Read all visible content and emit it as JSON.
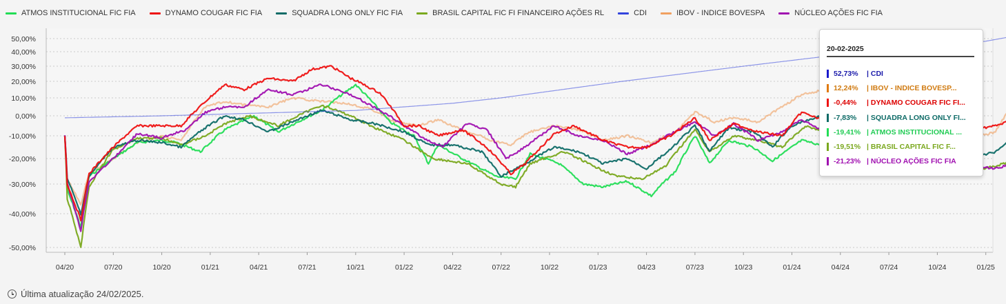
{
  "legend": [
    {
      "name": "ATMOS INSTITUCIONAL FIC FIA",
      "color": "#22dd55"
    },
    {
      "name": "DYNAMO COUGAR FIC FIA",
      "color": "#ee1111"
    },
    {
      "name": "SQUADRA LONG ONLY FIC FIA",
      "color": "#0e6b67"
    },
    {
      "name": "BRASIL CAPITAL FIC FI FINANCEIRO AÇÕES RL",
      "color": "#7aa81e"
    },
    {
      "name": "CDI",
      "color": "#3344dd"
    },
    {
      "name": "IBOV - INDICE BOVESPA",
      "color": "#f0a060"
    },
    {
      "name": "NÚCLEO AÇÕES FIC FIA",
      "color": "#a010b0"
    }
  ],
  "tooltip": {
    "date": "20-02-2025",
    "rows": [
      {
        "value": "52,73%",
        "label": "| CDI",
        "color": "#1a1aaa",
        "bar": "#1a1acc"
      },
      {
        "value": "12,24%",
        "label": "| IBOV - INDICE BOVESP...",
        "color": "#d07a10",
        "bar": "#e07a10"
      },
      {
        "value": "-0,44%",
        "label": "| DYNAMO COUGAR FIC FI...",
        "color": "#dd0000",
        "bar": "#ee1111"
      },
      {
        "value": "-7,83%",
        "label": "| SQUADRA LONG ONLY FI...",
        "color": "#0e6b67",
        "bar": "#0e6b67"
      },
      {
        "value": "-19,41%",
        "label": "| ATMOS INSTITUCIONAL ...",
        "color": "#22cc55",
        "bar": "#22dd55"
      },
      {
        "value": "-19,51%",
        "label": "| BRASIL CAPITAL FIC F...",
        "color": "#7aa81e",
        "bar": "#7aa81e"
      },
      {
        "value": "-21,23%",
        "label": "| NÚCLEO AÇÕES FIC FIA",
        "color": "#a010b0",
        "bar": "#a010b0"
      }
    ]
  },
  "footer": {
    "text": "Última atualização 24/02/2025."
  },
  "chart_data": {
    "type": "line",
    "x_ticks": [
      "04/20",
      "07/20",
      "10/20",
      "01/21",
      "04/21",
      "07/21",
      "10/21",
      "01/22",
      "04/22",
      "07/22",
      "10/22",
      "01/23",
      "04/23",
      "07/23",
      "10/23",
      "01/24",
      "04/24",
      "07/24",
      "10/24",
      "01/25"
    ],
    "y_ticks": [
      50,
      40,
      30,
      20,
      10,
      0,
      -10,
      -20,
      -30,
      -40,
      -50
    ],
    "y_tick_labels": [
      "50,00%",
      "40,00%",
      "30,00%",
      "20,00%",
      "10,00%",
      "0,00%",
      "-10,00%",
      "-20,00%",
      "-30,00%",
      "-40,00%",
      "-50,00%"
    ],
    "y_scale": "symlog",
    "grid": "horizontal-dotted",
    "legend_position": "top",
    "series": [
      {
        "name": "ATMOS INSTITUCIONAL FIC FIA",
        "color": "#22dd55",
        "points": [
          [
            0,
            -10
          ],
          [
            0.05,
            -32
          ],
          [
            0.33,
            -44
          ],
          [
            0.5,
            -27
          ],
          [
            1.0,
            -20
          ],
          [
            1.5,
            -13
          ],
          [
            2.0,
            -12
          ],
          [
            2.3,
            -13
          ],
          [
            2.8,
            -17
          ],
          [
            3.3,
            -7
          ],
          [
            3.9,
            0
          ],
          [
            4.4,
            -8
          ],
          [
            5.3,
            3
          ],
          [
            6.0,
            18
          ],
          [
            6.7,
            -3
          ],
          [
            7.2,
            -10
          ],
          [
            7.5,
            -22
          ],
          [
            7.7,
            -14
          ],
          [
            8.2,
            -20
          ],
          [
            8.9,
            -27
          ],
          [
            9.3,
            -28
          ],
          [
            9.6,
            -18
          ],
          [
            10.2,
            -22
          ],
          [
            10.7,
            -30
          ],
          [
            11.1,
            -31
          ],
          [
            11.6,
            -29
          ],
          [
            12.1,
            -34
          ],
          [
            12.6,
            -25
          ],
          [
            13.0,
            -10
          ],
          [
            13.3,
            -22
          ],
          [
            13.7,
            -12
          ],
          [
            14.2,
            -15
          ],
          [
            14.6,
            -21
          ],
          [
            15.2,
            -12
          ],
          [
            15.6,
            -14
          ],
          [
            16.0,
            -12
          ]
        ]
      },
      {
        "name": "DYNAMO COUGAR FIC FIA",
        "color": "#ee1111",
        "points": [
          [
            0,
            -10
          ],
          [
            0.05,
            -30
          ],
          [
            0.33,
            -42
          ],
          [
            0.5,
            -26
          ],
          [
            1.0,
            -15
          ],
          [
            1.5,
            -5
          ],
          [
            2.0,
            -5
          ],
          [
            2.4,
            -5
          ],
          [
            2.9,
            8
          ],
          [
            3.3,
            18
          ],
          [
            3.7,
            15
          ],
          [
            4.2,
            22
          ],
          [
            4.7,
            20
          ],
          [
            5.1,
            28
          ],
          [
            5.5,
            30
          ],
          [
            5.9,
            22
          ],
          [
            6.5,
            13
          ],
          [
            7.0,
            -5
          ],
          [
            7.3,
            -5
          ],
          [
            7.7,
            -10
          ],
          [
            8.2,
            -7
          ],
          [
            8.7,
            -15
          ],
          [
            9.2,
            -26
          ],
          [
            9.5,
            -22
          ],
          [
            10.1,
            -9
          ],
          [
            10.5,
            -5
          ],
          [
            11.1,
            -12
          ],
          [
            11.6,
            -15
          ],
          [
            12.0,
            -15
          ],
          [
            12.5,
            -10
          ],
          [
            13.0,
            -1
          ],
          [
            13.3,
            -12
          ],
          [
            13.8,
            -4
          ],
          [
            14.3,
            -8
          ],
          [
            14.8,
            -10
          ],
          [
            15.2,
            2
          ],
          [
            15.6,
            -2
          ],
          [
            16.0,
            0
          ],
          [
            16.4,
            8
          ],
          [
            16.8,
            7
          ],
          [
            18.7,
            -7
          ],
          [
            19.2,
            -5
          ],
          [
            19.7,
            -1
          ]
        ]
      },
      {
        "name": "SQUADRA LONG ONLY FIC FIA",
        "color": "#0e6b67",
        "points": [
          [
            0,
            -10
          ],
          [
            0.05,
            -28
          ],
          [
            0.33,
            -40
          ],
          [
            0.5,
            -27
          ],
          [
            1.0,
            -15
          ],
          [
            1.5,
            -12
          ],
          [
            2.0,
            -13
          ],
          [
            2.4,
            -15
          ],
          [
            2.9,
            -6
          ],
          [
            3.3,
            0
          ],
          [
            3.7,
            -2
          ],
          [
            4.2,
            -8
          ],
          [
            4.7,
            -3
          ],
          [
            5.3,
            3
          ],
          [
            5.9,
            -2
          ],
          [
            6.4,
            -4
          ],
          [
            7.0,
            -8
          ],
          [
            7.5,
            -14
          ],
          [
            8.0,
            -14
          ],
          [
            8.6,
            -17
          ],
          [
            9.0,
            -27
          ],
          [
            9.5,
            -22
          ],
          [
            10.1,
            -15
          ],
          [
            10.6,
            -17
          ],
          [
            11.1,
            -22
          ],
          [
            11.6,
            -20
          ],
          [
            12.0,
            -24
          ],
          [
            12.5,
            -16
          ],
          [
            13.0,
            -5
          ],
          [
            13.3,
            -17
          ],
          [
            13.7,
            -6
          ],
          [
            14.2,
            -8
          ],
          [
            14.6,
            -15
          ],
          [
            15.0,
            -5
          ],
          [
            15.6,
            0
          ],
          [
            16.0,
            10
          ],
          [
            16.4,
            13
          ],
          [
            16.8,
            12
          ],
          [
            18.7,
            -20
          ],
          [
            19.2,
            -17
          ],
          [
            19.7,
            -8
          ]
        ]
      },
      {
        "name": "BRASIL CAPITAL FIC FI FINANCEIRO AÇÕES RL",
        "color": "#7aa81e",
        "points": [
          [
            0,
            -10
          ],
          [
            0.05,
            -35
          ],
          [
            0.33,
            -50
          ],
          [
            0.5,
            -31
          ],
          [
            1.0,
            -16
          ],
          [
            1.5,
            -11
          ],
          [
            2.0,
            -11
          ],
          [
            2.4,
            -14
          ],
          [
            2.9,
            -10
          ],
          [
            3.3,
            -4
          ],
          [
            3.8,
            0
          ],
          [
            4.4,
            -5
          ],
          [
            5.3,
            6
          ],
          [
            5.9,
            0
          ],
          [
            6.4,
            -6
          ],
          [
            7.0,
            -12
          ],
          [
            7.6,
            -20
          ],
          [
            8.3,
            -22
          ],
          [
            9.0,
            -30
          ],
          [
            9.3,
            -31
          ],
          [
            9.6,
            -22
          ],
          [
            10.3,
            -17
          ],
          [
            10.9,
            -23
          ],
          [
            11.4,
            -27
          ],
          [
            11.9,
            -28
          ],
          [
            12.4,
            -23
          ],
          [
            13.0,
            -7
          ],
          [
            13.3,
            -17
          ],
          [
            13.8,
            -10
          ],
          [
            14.3,
            -12
          ],
          [
            14.8,
            -15
          ],
          [
            15.3,
            -5
          ],
          [
            15.6,
            -8
          ],
          [
            16.0,
            -8
          ],
          [
            18.7,
            -25
          ],
          [
            19.2,
            -23
          ],
          [
            19.7,
            -20
          ]
        ]
      },
      {
        "name": "CDI",
        "color": "#3344dd",
        "points": [
          [
            0,
            -1
          ],
          [
            2,
            0
          ],
          [
            4,
            1.5
          ],
          [
            6,
            3
          ],
          [
            8,
            7
          ],
          [
            9,
            10
          ],
          [
            10,
            14
          ],
          [
            11,
            18
          ],
          [
            12,
            22
          ],
          [
            13,
            26
          ],
          [
            14,
            30
          ],
          [
            15,
            34
          ],
          [
            16,
            38
          ],
          [
            17,
            41
          ],
          [
            18,
            44
          ],
          [
            19,
            48
          ],
          [
            19.7,
            52.73
          ]
        ]
      },
      {
        "name": "IBOV - INDICE BOVESPA",
        "color": "#f0a060",
        "points": [
          [
            0,
            -10
          ],
          [
            0.05,
            -28
          ],
          [
            0.33,
            -37
          ],
          [
            0.5,
            -26
          ],
          [
            1.0,
            -20
          ],
          [
            1.5,
            -13
          ],
          [
            2.0,
            -10
          ],
          [
            2.4,
            -12
          ],
          [
            2.9,
            5
          ],
          [
            3.3,
            8
          ],
          [
            3.7,
            6
          ],
          [
            4.2,
            5
          ],
          [
            4.7,
            10
          ],
          [
            5.3,
            8
          ],
          [
            5.8,
            7
          ],
          [
            6.3,
            4
          ],
          [
            6.8,
            -3
          ],
          [
            7.3,
            -5
          ],
          [
            7.7,
            -2
          ],
          [
            8.2,
            -7
          ],
          [
            8.8,
            -12
          ],
          [
            9.2,
            -14
          ],
          [
            9.6,
            -8
          ],
          [
            10.1,
            -5
          ],
          [
            10.6,
            -7
          ],
          [
            11.1,
            -12
          ],
          [
            11.6,
            -10
          ],
          [
            12.1,
            -13
          ],
          [
            12.6,
            -8
          ],
          [
            13.0,
            2
          ],
          [
            13.4,
            -3
          ],
          [
            13.8,
            -1
          ],
          [
            14.3,
            -3
          ],
          [
            14.8,
            5
          ],
          [
            15.2,
            12
          ],
          [
            15.7,
            15
          ],
          [
            16.0,
            12
          ],
          [
            16.4,
            13
          ],
          [
            16.8,
            12
          ],
          [
            18.7,
            -11
          ],
          [
            19.2,
            -8
          ],
          [
            19.7,
            12.24
          ]
        ]
      },
      {
        "name": "NÚCLEO AÇÕES FIC FIA",
        "color": "#a010b0",
        "points": [
          [
            0,
            -10
          ],
          [
            0.05,
            -30
          ],
          [
            0.33,
            -45
          ],
          [
            0.5,
            -29
          ],
          [
            1.0,
            -20
          ],
          [
            1.5,
            -9
          ],
          [
            2.0,
            -11
          ],
          [
            2.5,
            -7
          ],
          [
            2.9,
            2
          ],
          [
            3.3,
            5
          ],
          [
            3.7,
            5
          ],
          [
            4.2,
            15
          ],
          [
            4.7,
            12
          ],
          [
            5.3,
            18
          ],
          [
            5.9,
            12
          ],
          [
            6.5,
            3
          ],
          [
            7.0,
            -5
          ],
          [
            7.4,
            -11
          ],
          [
            7.8,
            -15
          ],
          [
            8.3,
            -4
          ],
          [
            8.7,
            -7
          ],
          [
            9.1,
            -20
          ],
          [
            9.5,
            -15
          ],
          [
            10.1,
            -5
          ],
          [
            10.6,
            -10
          ],
          [
            11.1,
            -12
          ],
          [
            11.6,
            -18
          ],
          [
            12.1,
            -14
          ],
          [
            12.5,
            -9
          ],
          [
            13.0,
            -3
          ],
          [
            13.4,
            -10
          ],
          [
            13.8,
            -4
          ],
          [
            14.3,
            -12
          ],
          [
            14.8,
            -8
          ],
          [
            15.2,
            -2
          ],
          [
            15.6,
            -7
          ],
          [
            16.0,
            -9
          ],
          [
            18.7,
            -23
          ],
          [
            19.2,
            -24
          ],
          [
            19.7,
            -21.23
          ]
        ]
      }
    ]
  }
}
